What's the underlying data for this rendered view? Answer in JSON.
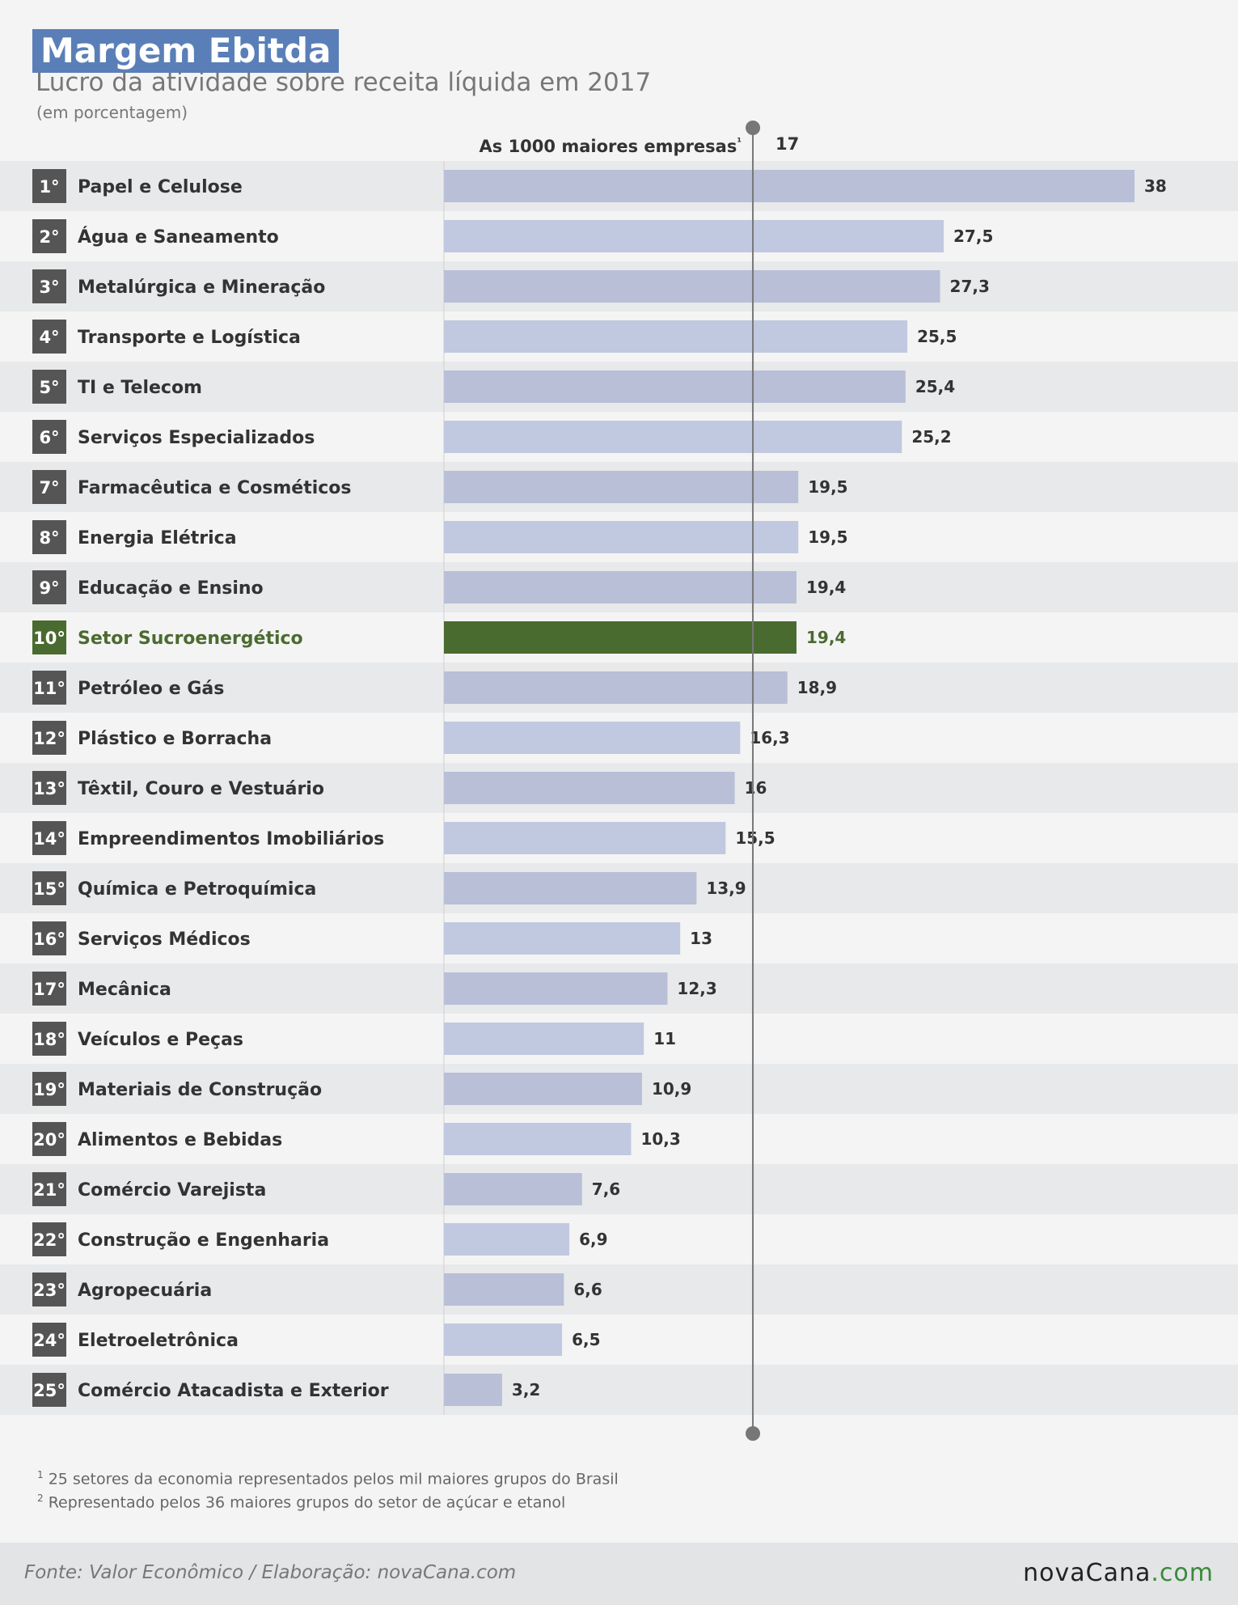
{
  "chart_data": {
    "type": "bar",
    "orientation": "horizontal",
    "title": "Margem Ebitda",
    "subtitle": "Lucro da atividade sobre receita líquida em 2017",
    "unit_note": "(em porcentagem)",
    "reference_line": {
      "label": "As 1000 maiores empresas",
      "marker": "¹",
      "value": 17,
      "value_label": "17"
    },
    "ranks": [
      "1°",
      "2°",
      "3°",
      "4°",
      "5°",
      "6°",
      "7°",
      "8°",
      "9°",
      "10°",
      "11°",
      "12°",
      "13°",
      "14°",
      "15°",
      "16°",
      "17°",
      "18°",
      "19°",
      "20°",
      "21°",
      "22°",
      "23°",
      "24°",
      "25°"
    ],
    "categories": [
      "Papel e Celulose",
      "Água e Saneamento",
      "Metalúrgica e Mineração",
      "Transporte e Logística",
      "TI e Telecom",
      "Serviços Especializados",
      "Farmacêutica e Cosméticos",
      "Energia Elétrica",
      "Educação e Ensino",
      "Setor Sucroenergético",
      "Petróleo e Gás",
      "Plástico e Borracha",
      "Têxtil, Couro e Vestuário",
      "Empreendimentos Imobiliários",
      "Química e Petroquímica",
      "Serviços Médicos",
      "Mecânica",
      "Veículos e Peças",
      "Materiais de Construção",
      "Alimentos e Bebidas",
      "Comércio Varejista",
      "Construção e Engenharia",
      "Agropecuária",
      "Eletroeletrônica",
      "Comércio Atacadista e Exterior"
    ],
    "values": [
      38,
      27.5,
      27.3,
      25.5,
      25.4,
      25.2,
      19.5,
      19.5,
      19.4,
      19.4,
      18.9,
      16.3,
      16,
      15.5,
      13.9,
      13,
      12.3,
      11,
      10.9,
      10.3,
      7.6,
      6.9,
      6.6,
      6.5,
      3.2
    ],
    "value_labels": [
      "38",
      "27,5",
      "27,3",
      "25,5",
      "25,4",
      "25,2",
      "19,5",
      "19,5",
      "19,4",
      "19,4",
      "18,9",
      "16,3",
      "16",
      "15,5",
      "13,9",
      "13",
      "12,3",
      "11",
      "10,9",
      "10,3",
      "7,6",
      "6,9",
      "6,6",
      "6,5",
      "3,2"
    ],
    "highlight_index": 9,
    "xlim": [
      0,
      38
    ],
    "colors": {
      "bar_odd": "#b8bfd6",
      "bar_even": "#c0c9e0",
      "highlight": "#4a6b30",
      "rank_box": "#555555",
      "row_odd": "#e8e9eb",
      "row_even": "#f4f4f4",
      "text": "#333333",
      "reference_line": "#777777"
    }
  },
  "footnotes": [
    {
      "marker": "1",
      "text": "25 setores da economia representados pelos mil maiores grupos do Brasil"
    },
    {
      "marker": "2",
      "text": "Representado pelos 36 maiores grupos do setor de açúcar e etanol"
    }
  ],
  "source": "Fonte: Valor Econômico / Elaboração: novaCana.com",
  "brand": {
    "name": "novaCana",
    "tld": ".com"
  }
}
